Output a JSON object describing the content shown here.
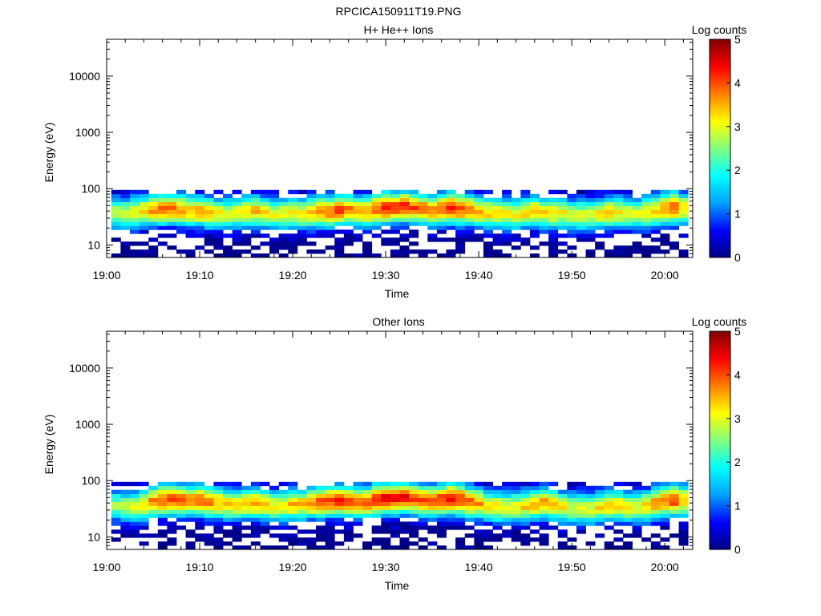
{
  "figure_title": "RPCICA150911T19.PNG",
  "colormap": [
    "#000080",
    "#0000ff",
    "#00a0ff",
    "#00ffff",
    "#80ff80",
    "#ffff00",
    "#ff8000",
    "#ff0000",
    "#800000"
  ],
  "chart_data": [
    {
      "type": "heatmap",
      "title": "H+ He++ Ions",
      "xlabel": "Time",
      "ylabel": "Energy (eV)",
      "x_ticks": [
        "19:00",
        "19:10",
        "19:20",
        "19:30",
        "19:40",
        "19:50",
        "20:00"
      ],
      "x_range": [
        "19:00",
        "20:03"
      ],
      "y_scale": "log",
      "y_ticks": [
        "10",
        "100",
        "1000",
        "10000"
      ],
      "y_range": [
        6,
        45000
      ],
      "colorbar": {
        "label": "Log counts",
        "range": [
          0,
          5
        ],
        "ticks": [
          "0",
          "1",
          "2",
          "3",
          "4",
          "5"
        ]
      },
      "time_bins_min": [
        1,
        2,
        3,
        4,
        5,
        6,
        7,
        8,
        9,
        10,
        11,
        12,
        13,
        14,
        15,
        16,
        17,
        18,
        19,
        20,
        21,
        22,
        23,
        24,
        25,
        26,
        27,
        28,
        29,
        30,
        31,
        32,
        33,
        34,
        35,
        36,
        37,
        38,
        39,
        40,
        41,
        42,
        43,
        44,
        45,
        46,
        47,
        48,
        49,
        50,
        51,
        52,
        53,
        54,
        55,
        56,
        57,
        58,
        59,
        60,
        61,
        62
      ],
      "peak_energy_eV": [
        38,
        36,
        38,
        40,
        42,
        44,
        44,
        42,
        40,
        40,
        38,
        36,
        36,
        38,
        40,
        40,
        38,
        36,
        36,
        38,
        36,
        38,
        40,
        40,
        42,
        42,
        40,
        40,
        44,
        46,
        46,
        48,
        46,
        44,
        42,
        44,
        46,
        44,
        42,
        40,
        38,
        36,
        36,
        36,
        38,
        40,
        38,
        36,
        36,
        34,
        34,
        34,
        36,
        38,
        38,
        36,
        36,
        38,
        40,
        44,
        46,
        44
      ],
      "peak_log_counts": [
        2.8,
        3.0,
        3.1,
        3.3,
        3.6,
        3.9,
        3.8,
        3.6,
        3.4,
        3.6,
        3.4,
        3.2,
        3.0,
        3.1,
        3.4,
        3.4,
        3.2,
        3.1,
        3.1,
        3.3,
        3.2,
        3.4,
        3.7,
        3.9,
        4.0,
        3.8,
        3.6,
        3.6,
        4.0,
        4.3,
        4.1,
        4.2,
        4.0,
        3.8,
        3.7,
        3.9,
        4.2,
        4.0,
        3.7,
        3.5,
        3.3,
        3.2,
        3.1,
        3.1,
        3.3,
        3.5,
        3.3,
        3.2,
        3.1,
        3.0,
        3.0,
        3.0,
        3.2,
        3.4,
        3.2,
        3.0,
        3.0,
        3.2,
        3.4,
        3.7,
        4.0,
        3.4
      ]
    },
    {
      "type": "heatmap",
      "title": "Other Ions",
      "xlabel": "Time",
      "ylabel": "Energy (eV)",
      "x_ticks": [
        "19:00",
        "19:10",
        "19:20",
        "19:30",
        "19:40",
        "19:50",
        "20:00"
      ],
      "x_range": [
        "19:00",
        "20:03"
      ],
      "y_scale": "log",
      "y_ticks": [
        "10",
        "100",
        "1000",
        "10000"
      ],
      "y_range": [
        6,
        45000
      ],
      "colorbar": {
        "label": "Log counts",
        "range": [
          0,
          5
        ],
        "ticks": [
          "0",
          "1",
          "2",
          "3",
          "4",
          "5"
        ]
      },
      "time_bins_min": [
        1,
        2,
        3,
        4,
        5,
        6,
        7,
        8,
        9,
        10,
        11,
        12,
        13,
        14,
        15,
        16,
        17,
        18,
        19,
        20,
        21,
        22,
        23,
        24,
        25,
        26,
        27,
        28,
        29,
        30,
        31,
        32,
        33,
        34,
        35,
        36,
        37,
        38,
        39,
        40,
        41,
        42,
        43,
        44,
        45,
        46,
        47,
        48,
        49,
        50,
        51,
        52,
        53,
        54,
        55,
        56,
        57,
        58,
        59,
        60,
        61,
        62
      ],
      "peak_energy_eV": [
        36,
        34,
        34,
        38,
        42,
        46,
        48,
        46,
        44,
        44,
        42,
        40,
        38,
        38,
        40,
        40,
        38,
        36,
        36,
        38,
        38,
        40,
        42,
        44,
        44,
        42,
        42,
        42,
        46,
        48,
        48,
        50,
        48,
        44,
        44,
        46,
        48,
        46,
        42,
        40,
        36,
        34,
        34,
        34,
        36,
        38,
        40,
        38,
        34,
        32,
        32,
        32,
        34,
        36,
        36,
        34,
        34,
        36,
        40,
        44,
        46,
        44
      ],
      "peak_log_counts": [
        2.6,
        2.8,
        3.0,
        3.3,
        3.7,
        4.0,
        4.1,
        3.9,
        3.8,
        3.9,
        3.7,
        3.5,
        3.3,
        3.3,
        3.6,
        3.6,
        3.4,
        3.2,
        3.2,
        3.5,
        3.4,
        3.6,
        3.9,
        4.1,
        4.2,
        4.0,
        3.8,
        3.9,
        4.3,
        4.5,
        4.3,
        4.4,
        4.2,
        4.0,
        3.9,
        4.1,
        4.4,
        4.2,
        3.9,
        3.6,
        3.3,
        3.2,
        3.1,
        3.1,
        3.3,
        3.5,
        3.6,
        3.4,
        3.2,
        3.0,
        3.0,
        3.0,
        3.2,
        3.4,
        3.3,
        3.1,
        3.1,
        3.3,
        3.6,
        3.9,
        4.1,
        3.4
      ]
    }
  ]
}
